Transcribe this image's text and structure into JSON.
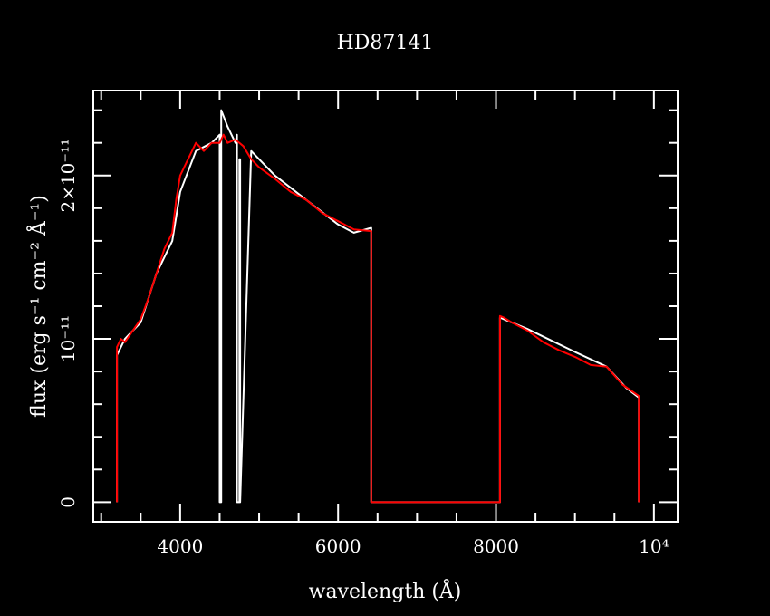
{
  "chart_data": {
    "type": "line",
    "title": "HD87141",
    "xlabel": "wavelength (Å)",
    "ylabel": "flux (erg s⁻¹ cm⁻² Å⁻¹)",
    "xlim": [
      2900,
      10300
    ],
    "ylim": [
      -1.2e-12,
      2.52e-11
    ],
    "x_ticks": [
      {
        "value": 4000,
        "label": "4000"
      },
      {
        "value": 6000,
        "label": "6000"
      },
      {
        "value": 8000,
        "label": "8000"
      },
      {
        "value": 10000,
        "label": "10⁴"
      }
    ],
    "y_ticks": [
      {
        "value": 0,
        "label": "0"
      },
      {
        "value": 1e-11,
        "label": "10⁻¹¹"
      },
      {
        "value": 2e-11,
        "label": "2×10⁻¹¹"
      }
    ],
    "series": [
      {
        "color": "#ffffff",
        "x": [
          3200,
          3200,
          3300,
          3500,
          3700,
          3900,
          4000,
          4200,
          4400,
          4500,
          4500,
          4520,
          4520,
          4600,
          4700,
          4720,
          4720,
          4750,
          4750,
          4760,
          4760,
          4900,
          5200,
          5600,
          6000,
          6200,
          6420,
          6420,
          8050,
          8050,
          8400,
          9000,
          9400,
          9650,
          9810,
          9810
        ],
        "y": [
          0,
          9e-12,
          1e-11,
          1.1e-11,
          1.4e-11,
          1.6e-11,
          1.9e-11,
          2.15e-11,
          2.2e-11,
          2.25e-11,
          0,
          0,
          2.4e-11,
          2.3e-11,
          2.2e-11,
          2.25e-11,
          0,
          0,
          2.1e-11,
          2.1e-11,
          0,
          2.15e-11,
          2e-11,
          1.85e-11,
          1.7e-11,
          1.65e-11,
          1.68e-11,
          0,
          0,
          1.13e-11,
          1.06e-11,
          9.2e-12,
          8.3e-12,
          7e-12,
          6.4e-12,
          0
        ]
      },
      {
        "color": "#ff0000",
        "x": [
          3200,
          3200,
          3250,
          3300,
          3400,
          3500,
          3600,
          3700,
          3800,
          3900,
          3950,
          4000,
          4100,
          4200,
          4300,
          4400,
          4500,
          4550,
          4600,
          4700,
          4800,
          4900,
          5000,
          5200,
          5400,
          5600,
          5800,
          6000,
          6200,
          6420,
          6420,
          8050,
          8050,
          8100,
          8200,
          8400,
          8600,
          8800,
          9000,
          9200,
          9400,
          9600,
          9810,
          9810
        ],
        "y": [
          0,
          9.5e-12,
          1e-11,
          9.8e-12,
          1.05e-11,
          1.12e-11,
          1.25e-11,
          1.4e-11,
          1.55e-11,
          1.65e-11,
          1.85e-11,
          2e-11,
          2.1e-11,
          2.2e-11,
          2.15e-11,
          2.2e-11,
          2.2e-11,
          2.25e-11,
          2.2e-11,
          2.22e-11,
          2.18e-11,
          2.1e-11,
          2.05e-11,
          1.98e-11,
          1.9e-11,
          1.85e-11,
          1.77e-11,
          1.72e-11,
          1.67e-11,
          1.66e-11,
          0,
          0,
          1.14e-11,
          1.13e-11,
          1.1e-11,
          1.05e-11,
          9.8e-12,
          9.3e-12,
          8.9e-12,
          8.4e-12,
          8.3e-12,
          7.2e-12,
          6.5e-12,
          0
        ]
      }
    ],
    "grid": false,
    "background": "#000000",
    "axis_color": "#ffffff"
  }
}
